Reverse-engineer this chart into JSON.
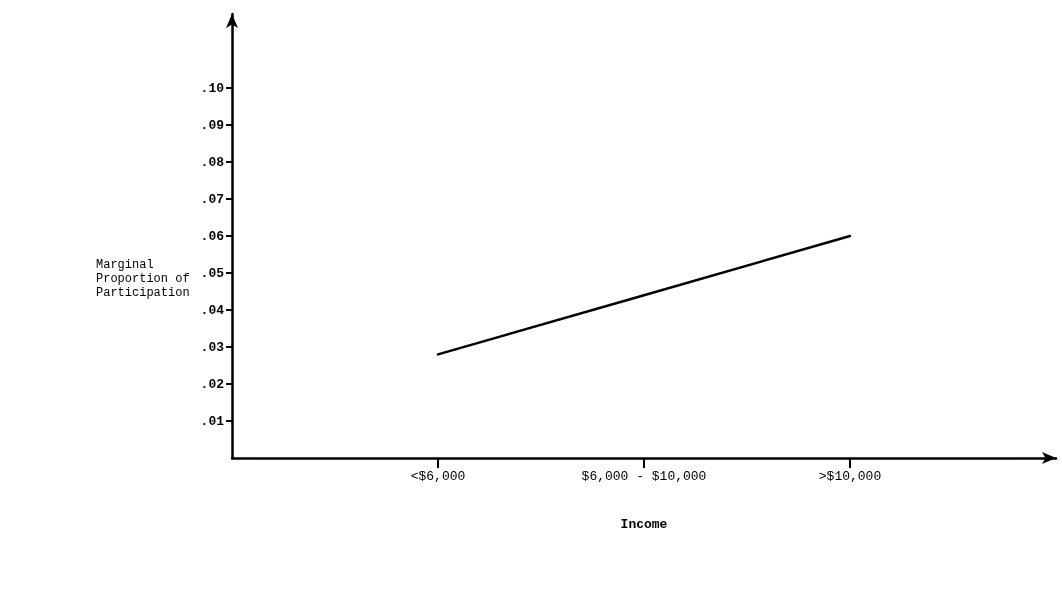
{
  "chart_data": {
    "type": "line",
    "xlabel": "Income",
    "ylabel": "Marginal Proportion of Participation",
    "categories": [
      null,
      "<$6,000",
      "$6,000 - $10,000",
      ">$10,000",
      null
    ],
    "series": [
      {
        "color": "#000000",
        "values": [
          null,
          0.028,
          0.044,
          0.06,
          null
        ]
      }
    ],
    "ylim": [
      0,
      0.12
    ],
    "yticks": [
      {
        "value": 0.01,
        "label": ".01"
      },
      {
        "value": 0.02,
        "label": ".02"
      },
      {
        "value": 0.03,
        "label": ".03"
      },
      {
        "value": 0.04,
        "label": ".04"
      },
      {
        "value": 0.05,
        "label": ".05"
      },
      {
        "value": 0.06,
        "label": ".06"
      },
      {
        "value": 0.07,
        "label": ".07"
      },
      {
        "value": 0.08,
        "label": ".08"
      },
      {
        "value": 0.09,
        "label": ".09"
      },
      {
        "value": 0.1,
        "label": ".10"
      }
    ],
    "grid": false,
    "marker": "none",
    "line_style": "solid"
  }
}
